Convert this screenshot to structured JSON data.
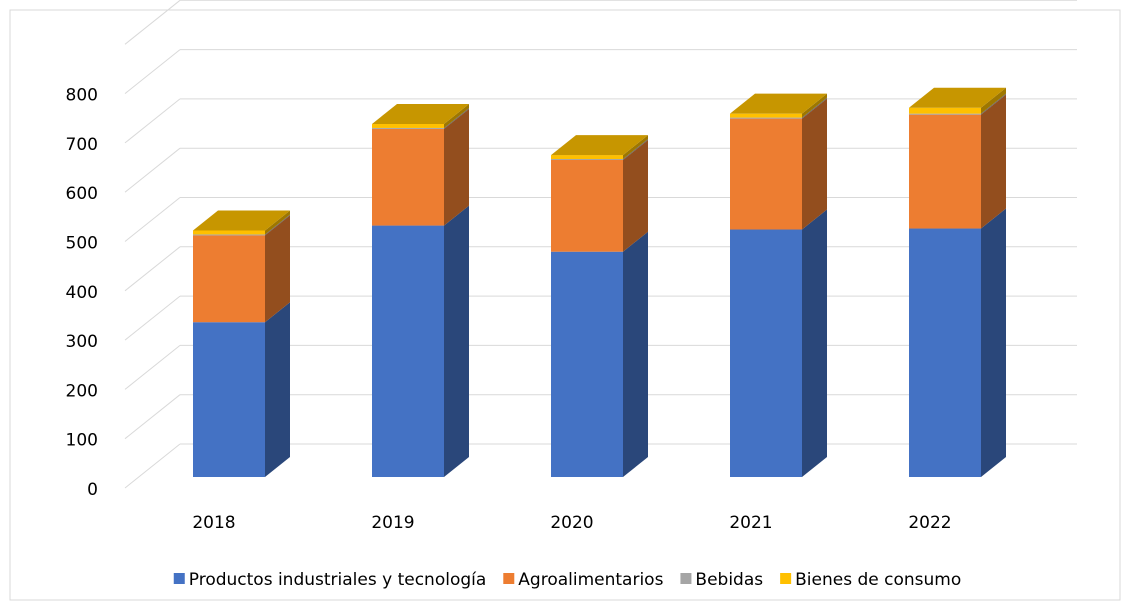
{
  "chart_data": {
    "type": "bar3d_stacked",
    "categories": [
      "2018",
      "2019",
      "2020",
      "2021",
      "2022"
    ],
    "series": [
      {
        "name": "Productos industriales y tecnología",
        "color": "#4472c4",
        "values": [
          314,
          510,
          457,
          502,
          504
        ]
      },
      {
        "name": "Agroalimentarios",
        "color": "#ed7d31",
        "values": [
          176,
          196,
          186,
          225,
          231
        ]
      },
      {
        "name": "Bebidas",
        "color": "#a5a5a5",
        "values": [
          2,
          2,
          2,
          2,
          2
        ]
      },
      {
        "name": "Bienes de consumo",
        "color": "#ffc000",
        "values": [
          8,
          8,
          8,
          8,
          12
        ]
      }
    ],
    "ylim": [
      0,
      900
    ],
    "yticks": [
      0,
      100,
      200,
      300,
      400,
      500,
      600,
      700,
      800
    ],
    "grid": true
  }
}
